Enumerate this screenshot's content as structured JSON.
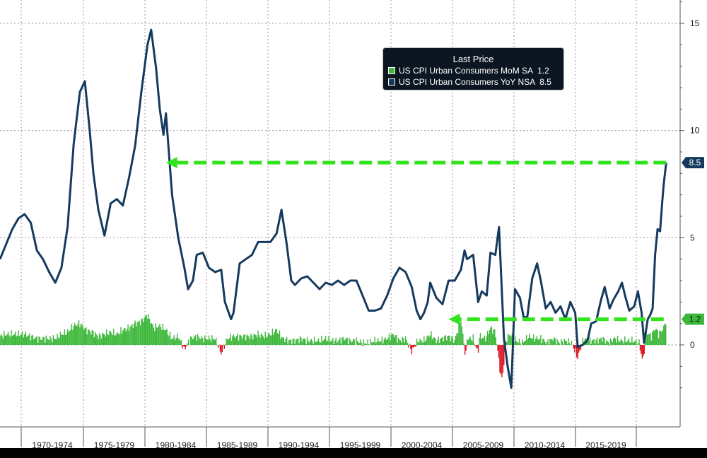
{
  "chart_data": {
    "type": "line",
    "legend": {
      "title": "Last Price",
      "placement": "top-right",
      "entries": [
        {
          "name": "US CPI Urban Consumers MoM SA",
          "last": "1.2",
          "color": "#3db83a"
        },
        {
          "name": "US CPI Urban Consumers YoY NSA",
          "last": "8.5",
          "color": "#163a5f"
        }
      ]
    },
    "x_tick_labels": [
      "1970-1974",
      "1975-1979",
      "1980-1984",
      "1985-1989",
      "1990-1994",
      "1995-1999",
      "2000-2004",
      "2005-2009",
      "2010-2014",
      "2015-2019"
    ],
    "y_ticks": [
      "15",
      "10",
      "5",
      "0"
    ],
    "ylim": [
      -2.5,
      16
    ],
    "xlim": [
      1968,
      2022.3
    ],
    "grid": true,
    "right_labels": [
      {
        "text": "8.5",
        "value": 8.5,
        "bg": "#163a5f",
        "fg": "#ffffff"
      },
      {
        "text": "1.2",
        "value": 1.2,
        "bg": "#3db83a",
        "fg": "#0c1622"
      }
    ],
    "arrows": [
      {
        "from": [
          2022.2,
          8.5
        ],
        "to": [
          1981.5,
          8.5
        ]
      },
      {
        "from": [
          2022.0,
          1.2
        ],
        "to": [
          2004.5,
          1.2
        ]
      }
    ],
    "series": [
      {
        "name": "US CPI Urban Consumers YoY NSA",
        "color": "#163a5f",
        "points": [
          [
            1968.0,
            4.0
          ],
          [
            1968.5,
            4.7
          ],
          [
            1969.0,
            5.4
          ],
          [
            1969.5,
            5.9
          ],
          [
            1970.0,
            6.1
          ],
          [
            1970.5,
            5.7
          ],
          [
            1971.0,
            4.4
          ],
          [
            1971.5,
            4.0
          ],
          [
            1972.0,
            3.4
          ],
          [
            1972.5,
            2.9
          ],
          [
            1973.0,
            3.6
          ],
          [
            1973.5,
            5.5
          ],
          [
            1974.0,
            9.4
          ],
          [
            1974.5,
            11.8
          ],
          [
            1974.9,
            12.3
          ],
          [
            1975.3,
            10.0
          ],
          [
            1975.6,
            8.0
          ],
          [
            1976.0,
            6.3
          ],
          [
            1976.5,
            5.1
          ],
          [
            1977.0,
            6.6
          ],
          [
            1977.5,
            6.8
          ],
          [
            1978.0,
            6.5
          ],
          [
            1978.5,
            7.8
          ],
          [
            1979.0,
            9.3
          ],
          [
            1979.5,
            11.8
          ],
          [
            1980.0,
            14.0
          ],
          [
            1980.3,
            14.7
          ],
          [
            1980.7,
            12.9
          ],
          [
            1981.0,
            11.0
          ],
          [
            1981.3,
            9.8
          ],
          [
            1981.5,
            10.8
          ],
          [
            1982.0,
            7.0
          ],
          [
            1982.5,
            5.0
          ],
          [
            1983.0,
            3.6
          ],
          [
            1983.3,
            2.6
          ],
          [
            1983.7,
            3.0
          ],
          [
            1984.0,
            4.2
          ],
          [
            1984.5,
            4.3
          ],
          [
            1985.0,
            3.6
          ],
          [
            1985.5,
            3.4
          ],
          [
            1986.0,
            3.5
          ],
          [
            1986.3,
            2.0
          ],
          [
            1986.8,
            1.2
          ],
          [
            1987.0,
            1.5
          ],
          [
            1987.5,
            3.8
          ],
          [
            1988.0,
            4.0
          ],
          [
            1988.5,
            4.2
          ],
          [
            1989.0,
            4.8
          ],
          [
            1989.5,
            4.8
          ],
          [
            1990.0,
            4.8
          ],
          [
            1990.5,
            5.2
          ],
          [
            1990.9,
            6.3
          ],
          [
            1991.3,
            4.8
          ],
          [
            1991.7,
            3.0
          ],
          [
            1992.0,
            2.8
          ],
          [
            1992.5,
            3.1
          ],
          [
            1993.0,
            3.2
          ],
          [
            1993.5,
            2.9
          ],
          [
            1994.0,
            2.6
          ],
          [
            1994.5,
            2.9
          ],
          [
            1995.0,
            2.8
          ],
          [
            1995.5,
            3.0
          ],
          [
            1996.0,
            2.8
          ],
          [
            1996.5,
            3.0
          ],
          [
            1997.0,
            3.0
          ],
          [
            1997.5,
            2.3
          ],
          [
            1998.0,
            1.6
          ],
          [
            1998.5,
            1.6
          ],
          [
            1999.0,
            1.7
          ],
          [
            1999.5,
            2.3
          ],
          [
            2000.0,
            3.1
          ],
          [
            2000.5,
            3.6
          ],
          [
            2001.0,
            3.4
          ],
          [
            2001.5,
            2.7
          ],
          [
            2001.9,
            1.6
          ],
          [
            2002.2,
            1.2
          ],
          [
            2002.5,
            1.5
          ],
          [
            2002.8,
            2.0
          ],
          [
            2003.0,
            2.9
          ],
          [
            2003.5,
            2.2
          ],
          [
            2004.0,
            1.9
          ],
          [
            2004.5,
            3.0
          ],
          [
            2005.0,
            3.0
          ],
          [
            2005.5,
            3.5
          ],
          [
            2005.8,
            4.4
          ],
          [
            2006.0,
            4.0
          ],
          [
            2006.5,
            4.2
          ],
          [
            2006.9,
            2.0
          ],
          [
            2007.2,
            2.5
          ],
          [
            2007.6,
            2.3
          ],
          [
            2007.9,
            4.3
          ],
          [
            2008.3,
            4.2
          ],
          [
            2008.6,
            5.5
          ],
          [
            2009.0,
            0.3
          ],
          [
            2009.3,
            -1.0
          ],
          [
            2009.6,
            -2.0
          ],
          [
            2009.9,
            2.6
          ],
          [
            2010.3,
            2.2
          ],
          [
            2010.6,
            1.3
          ],
          [
            2010.9,
            1.3
          ],
          [
            2011.3,
            3.1
          ],
          [
            2011.7,
            3.8
          ],
          [
            2012.0,
            3.0
          ],
          [
            2012.4,
            1.7
          ],
          [
            2012.8,
            2.0
          ],
          [
            2013.2,
            1.5
          ],
          [
            2013.6,
            1.8
          ],
          [
            2014.0,
            1.2
          ],
          [
            2014.4,
            2.0
          ],
          [
            2014.8,
            1.5
          ],
          [
            2015.0,
            -0.1
          ],
          [
            2015.4,
            0.0
          ],
          [
            2015.8,
            0.2
          ],
          [
            2016.1,
            1.0
          ],
          [
            2016.5,
            1.1
          ],
          [
            2016.9,
            2.1
          ],
          [
            2017.2,
            2.7
          ],
          [
            2017.6,
            1.7
          ],
          [
            2017.9,
            2.1
          ],
          [
            2018.3,
            2.5
          ],
          [
            2018.6,
            2.9
          ],
          [
            2018.9,
            2.2
          ],
          [
            2019.2,
            1.6
          ],
          [
            2019.6,
            1.8
          ],
          [
            2019.9,
            2.5
          ],
          [
            2020.2,
            1.5
          ],
          [
            2020.4,
            0.1
          ],
          [
            2020.7,
            1.2
          ],
          [
            2020.9,
            1.4
          ],
          [
            2021.1,
            1.7
          ],
          [
            2021.3,
            4.2
          ],
          [
            2021.5,
            5.4
          ],
          [
            2021.7,
            5.3
          ],
          [
            2021.9,
            6.8
          ],
          [
            2022.0,
            7.5
          ],
          [
            2022.2,
            8.5
          ]
        ]
      },
      {
        "name": "US CPI Urban Consumers MoM SA",
        "color": "#3db83a",
        "negative_color": "#d9141f",
        "points": [
          [
            1968.0,
            0.4
          ],
          [
            1968.5,
            0.5
          ],
          [
            1969.0,
            0.5
          ],
          [
            1969.5,
            0.5
          ],
          [
            1970.0,
            0.5
          ],
          [
            1970.5,
            0.4
          ],
          [
            1971.0,
            0.3
          ],
          [
            1971.5,
            0.3
          ],
          [
            1972.0,
            0.3
          ],
          [
            1972.5,
            0.3
          ],
          [
            1973.0,
            0.5
          ],
          [
            1973.5,
            0.6
          ],
          [
            1974.0,
            0.9
          ],
          [
            1974.5,
            1.0
          ],
          [
            1975.0,
            0.7
          ],
          [
            1975.5,
            0.6
          ],
          [
            1976.0,
            0.4
          ],
          [
            1976.5,
            0.5
          ],
          [
            1977.0,
            0.6
          ],
          [
            1977.5,
            0.5
          ],
          [
            1978.0,
            0.7
          ],
          [
            1978.5,
            0.8
          ],
          [
            1979.0,
            1.0
          ],
          [
            1979.5,
            1.1
          ],
          [
            1980.0,
            1.4
          ],
          [
            1980.5,
            0.8
          ],
          [
            1981.0,
            0.9
          ],
          [
            1981.5,
            0.7
          ],
          [
            1982.0,
            0.3
          ],
          [
            1982.5,
            0.4
          ],
          [
            1983.0,
            -0.2
          ],
          [
            1983.5,
            0.3
          ],
          [
            1984.0,
            0.4
          ],
          [
            1984.5,
            0.3
          ],
          [
            1985.0,
            0.3
          ],
          [
            1985.5,
            0.3
          ],
          [
            1986.0,
            -0.4
          ],
          [
            1986.5,
            0.3
          ],
          [
            1987.0,
            0.4
          ],
          [
            1987.5,
            0.4
          ],
          [
            1988.0,
            0.4
          ],
          [
            1988.5,
            0.4
          ],
          [
            1989.0,
            0.5
          ],
          [
            1989.5,
            0.4
          ],
          [
            1990.0,
            0.5
          ],
          [
            1990.5,
            0.7
          ],
          [
            1991.0,
            0.3
          ],
          [
            1991.5,
            0.2
          ],
          [
            1992.0,
            0.2
          ],
          [
            1992.5,
            0.3
          ],
          [
            1993.0,
            0.2
          ],
          [
            1993.5,
            0.2
          ],
          [
            1994.0,
            0.2
          ],
          [
            1994.5,
            0.3
          ],
          [
            1995.0,
            0.2
          ],
          [
            1995.5,
            0.2
          ],
          [
            1996.0,
            0.3
          ],
          [
            1996.5,
            0.2
          ],
          [
            1997.0,
            0.2
          ],
          [
            1997.5,
            0.1
          ],
          [
            1998.0,
            0.1
          ],
          [
            1998.5,
            0.2
          ],
          [
            1999.0,
            0.2
          ],
          [
            1999.5,
            0.3
          ],
          [
            2000.0,
            0.5
          ],
          [
            2000.5,
            0.2
          ],
          [
            2001.0,
            0.3
          ],
          [
            2001.5,
            -0.3
          ],
          [
            2002.0,
            0.2
          ],
          [
            2002.5,
            0.2
          ],
          [
            2003.0,
            0.5
          ],
          [
            2003.5,
            0.2
          ],
          [
            2004.0,
            0.3
          ],
          [
            2004.5,
            0.4
          ],
          [
            2005.0,
            0.2
          ],
          [
            2005.5,
            1.2
          ],
          [
            2005.9,
            -0.6
          ],
          [
            2006.0,
            0.3
          ],
          [
            2006.5,
            0.3
          ],
          [
            2006.9,
            -0.4
          ],
          [
            2007.0,
            0.4
          ],
          [
            2007.5,
            0.3
          ],
          [
            2007.9,
            0.8
          ],
          [
            2008.3,
            0.6
          ],
          [
            2008.8,
            -1.7
          ],
          [
            2009.0,
            -0.9
          ],
          [
            2009.2,
            0.3
          ],
          [
            2009.5,
            0.5
          ],
          [
            2010.0,
            0.2
          ],
          [
            2010.5,
            0.1
          ],
          [
            2011.0,
            0.4
          ],
          [
            2011.5,
            0.3
          ],
          [
            2012.0,
            0.3
          ],
          [
            2012.5,
            0.1
          ],
          [
            2013.0,
            0.3
          ],
          [
            2013.5,
            0.1
          ],
          [
            2014.0,
            0.2
          ],
          [
            2014.5,
            0.1
          ],
          [
            2015.0,
            -0.6
          ],
          [
            2015.5,
            0.3
          ],
          [
            2016.0,
            0.2
          ],
          [
            2016.5,
            0.2
          ],
          [
            2017.0,
            0.3
          ],
          [
            2017.5,
            0.1
          ],
          [
            2018.0,
            0.3
          ],
          [
            2018.5,
            0.2
          ],
          [
            2019.0,
            0.2
          ],
          [
            2019.5,
            0.2
          ],
          [
            2020.0,
            0.1
          ],
          [
            2020.3,
            -0.8
          ],
          [
            2020.6,
            0.6
          ],
          [
            2021.0,
            0.4
          ],
          [
            2021.3,
            0.8
          ],
          [
            2021.6,
            0.5
          ],
          [
            2022.0,
            0.8
          ],
          [
            2022.2,
            1.2
          ]
        ]
      }
    ]
  }
}
